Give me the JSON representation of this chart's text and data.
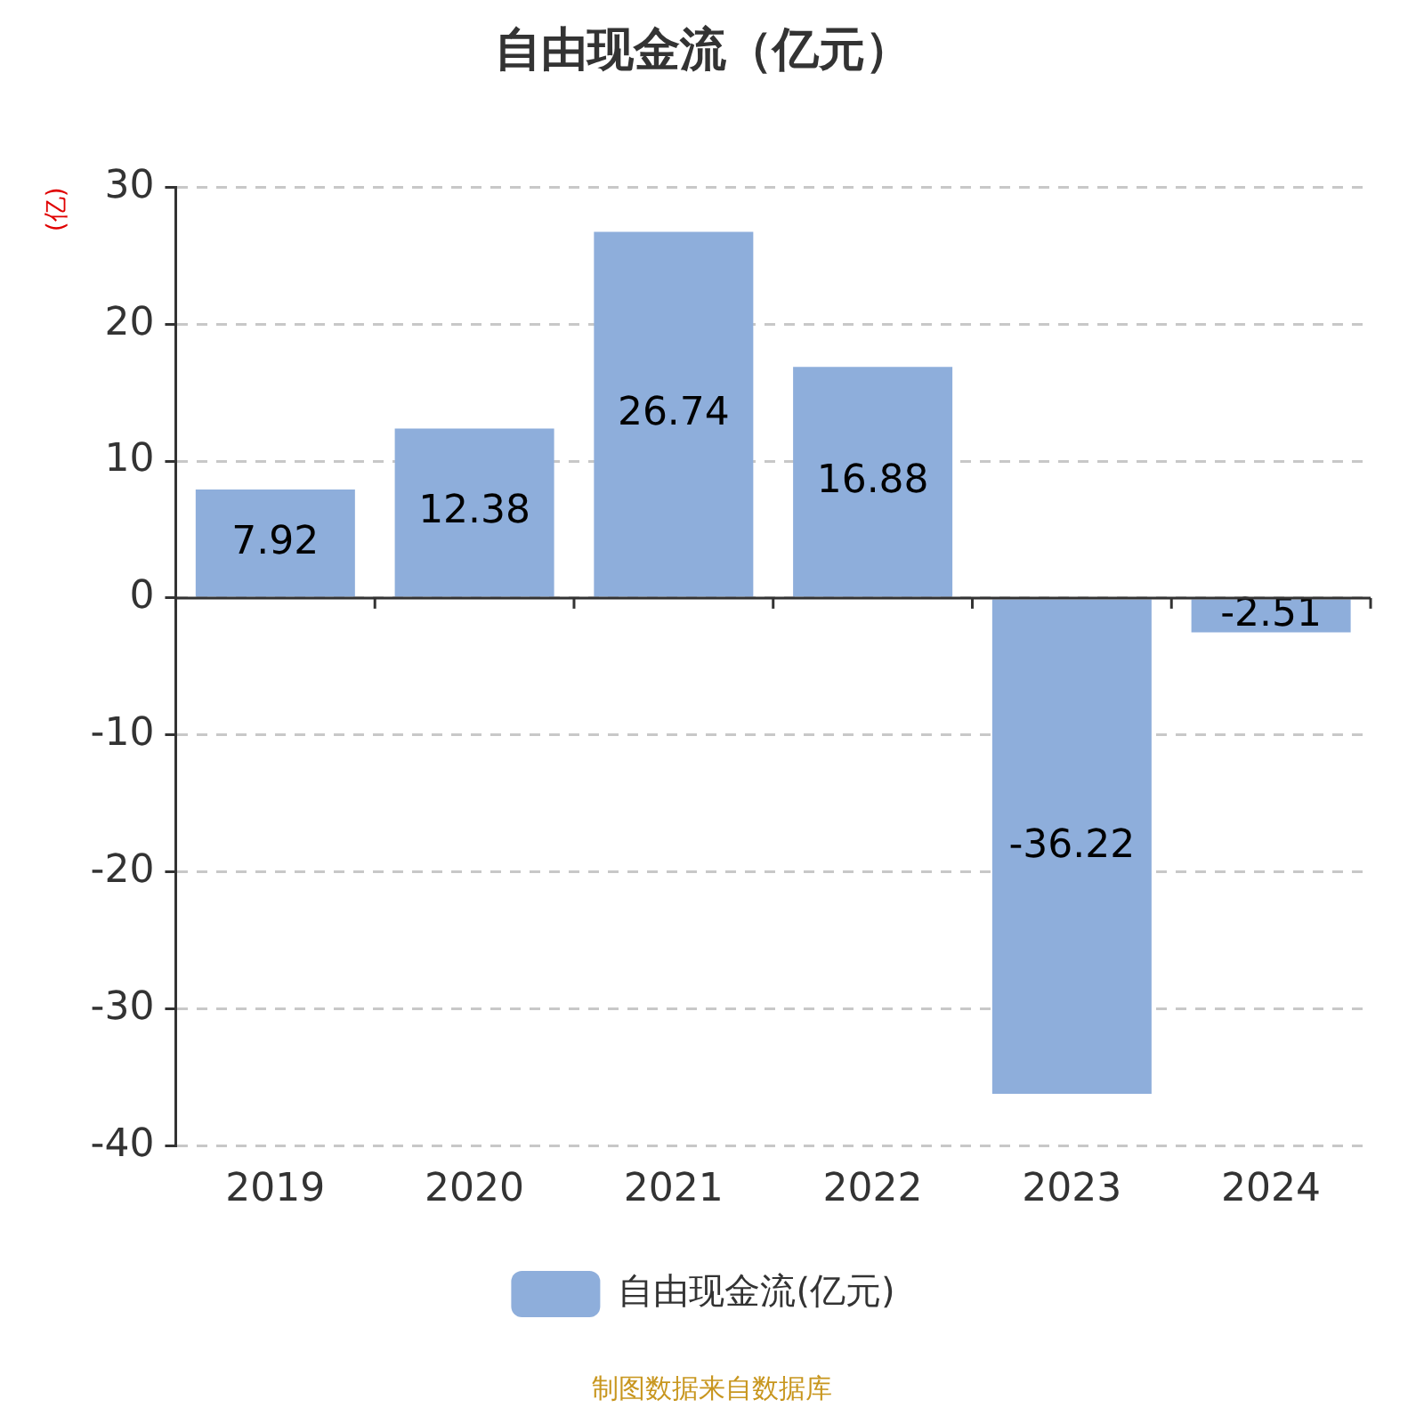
{
  "chart_data": {
    "type": "bar",
    "title": "自由现金流（亿元）",
    "ylabel": "(亿)",
    "categories": [
      "2019",
      "2020",
      "2021",
      "2022",
      "2023",
      "2024"
    ],
    "series": [
      {
        "name": "自由现金流(亿元)",
        "color": "#8eaedb",
        "values": [
          7.92,
          12.38,
          26.74,
          16.88,
          -36.22,
          -2.51
        ]
      }
    ],
    "ylim": [
      -40,
      30
    ],
    "yticks": [
      -40,
      -30,
      -20,
      -10,
      0,
      10,
      20,
      30
    ],
    "grid": "y",
    "legend": "bottom",
    "data_labels": true,
    "annotations": [
      "制图数据来自数据库"
    ]
  }
}
